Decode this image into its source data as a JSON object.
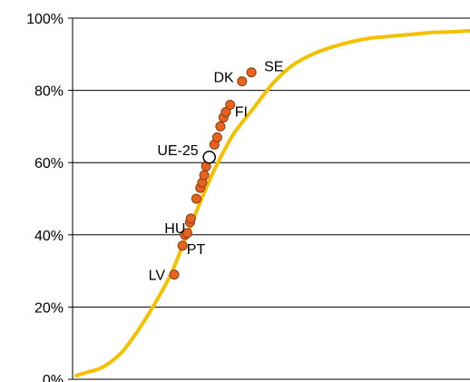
{
  "chart_data": {
    "type": "line",
    "title": "",
    "xlabel": "",
    "ylabel": "",
    "ylim": [
      0,
      100
    ],
    "yticks": [
      0,
      20,
      40,
      60,
      80,
      100
    ],
    "ytick_labels": [
      "0%",
      "20%",
      "40%",
      "60%",
      "80%",
      "100%"
    ],
    "grid": "horizontal",
    "legend": "none",
    "colors": {
      "curve": "#F5C000",
      "marker_fill": "#E8641E",
      "marker_edge": "#8B3A0E",
      "eu_marker_fill": "#FFFFFF",
      "eu_marker_edge": "#000000",
      "grid": "#000000"
    },
    "curve": {
      "x": [
        0,
        3,
        6,
        9,
        12,
        16,
        20,
        24,
        27,
        30,
        33,
        36,
        40,
        45,
        50,
        55,
        60,
        65,
        70,
        75,
        80,
        85,
        90,
        95,
        100
      ],
      "y": [
        1,
        2,
        3,
        5,
        8,
        14,
        21,
        29,
        37,
        45,
        53,
        60,
        68,
        75,
        82,
        87,
        90,
        92,
        93.5,
        94.5,
        95,
        95.5,
        96,
        96.2,
        96.5
      ]
    },
    "points": [
      {
        "x": 24.9,
        "y": 29,
        "label": "LV"
      },
      {
        "x": 27.0,
        "y": 37,
        "label": ""
      },
      {
        "x": 27.6,
        "y": 40,
        "label": "PT"
      },
      {
        "x": 28.2,
        "y": 40.5,
        "label": "HU"
      },
      {
        "x": 28.9,
        "y": 43.5,
        "label": ""
      },
      {
        "x": 29.1,
        "y": 44.5,
        "label": ""
      },
      {
        "x": 30.5,
        "y": 50,
        "label": ""
      },
      {
        "x": 31.5,
        "y": 53,
        "label": ""
      },
      {
        "x": 32.0,
        "y": 54.5,
        "label": ""
      },
      {
        "x": 32.5,
        "y": 56.5,
        "label": ""
      },
      {
        "x": 33.0,
        "y": 59,
        "label": ""
      },
      {
        "x": 33.8,
        "y": 61.5,
        "label": "UE-25",
        "eu": true
      },
      {
        "x": 35.1,
        "y": 65,
        "label": ""
      },
      {
        "x": 35.8,
        "y": 67,
        "label": ""
      },
      {
        "x": 36.6,
        "y": 70,
        "label": ""
      },
      {
        "x": 37.4,
        "y": 72.5,
        "label": ""
      },
      {
        "x": 38.0,
        "y": 74,
        "label": ""
      },
      {
        "x": 39.1,
        "y": 76,
        "label": "FI"
      },
      {
        "x": 42.1,
        "y": 82.5,
        "label": "DK"
      },
      {
        "x": 44.5,
        "y": 85,
        "label": "SE"
      }
    ]
  }
}
